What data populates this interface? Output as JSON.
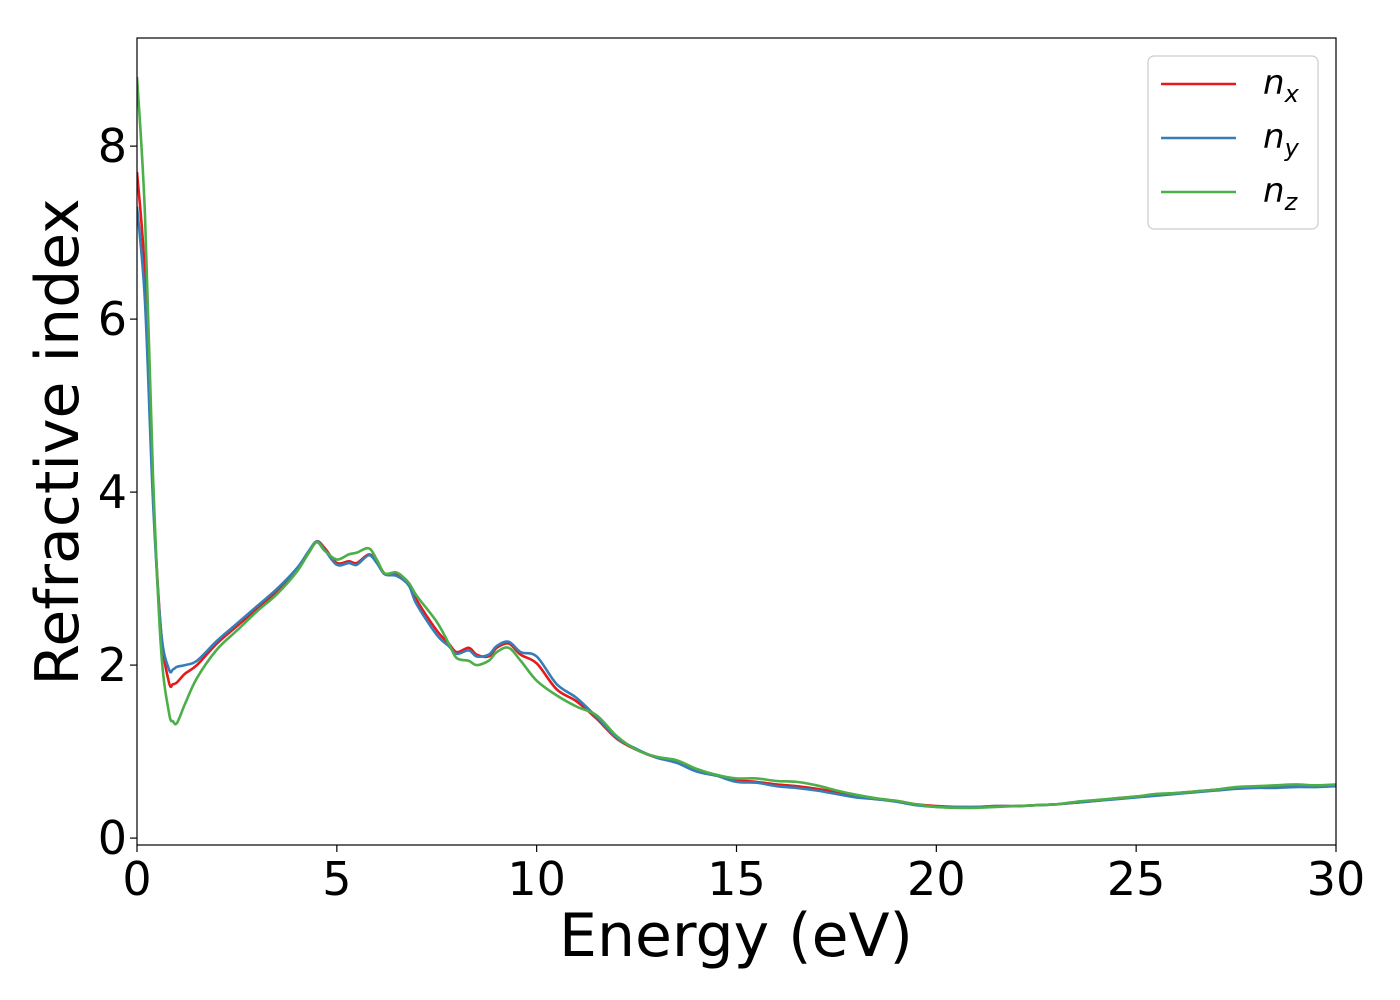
{
  "chart_data": {
    "type": "line",
    "xlabel": "Energy (eV)",
    "ylabel": "Refractive index",
    "xlim": [
      0,
      30
    ],
    "ylim": [
      -0.08,
      9.25
    ],
    "xticks": [
      0,
      5,
      10,
      15,
      20,
      25,
      30
    ],
    "xtick_labels": [
      "0",
      "5",
      "10",
      "15",
      "20",
      "25",
      "30"
    ],
    "yticks": [
      0,
      2,
      4,
      6,
      8
    ],
    "ytick_labels": [
      "0",
      "2",
      "4",
      "6",
      "8"
    ],
    "grid": false,
    "legend_position": "top-right",
    "series": [
      {
        "name": "n_x",
        "label_base": "n",
        "label_sub": "x",
        "color": "#e41a1c",
        "x": [
          0,
          0.2,
          0.4,
          0.6,
          0.8,
          0.9,
          1.0,
          1.2,
          1.5,
          2.0,
          2.5,
          3.0,
          3.5,
          4.0,
          4.3,
          4.5,
          4.7,
          5.0,
          5.3,
          5.5,
          5.8,
          6.0,
          6.2,
          6.5,
          6.8,
          7.0,
          7.5,
          7.8,
          8.0,
          8.3,
          8.5,
          8.8,
          9.0,
          9.3,
          9.6,
          10.0,
          10.5,
          11.0,
          11.5,
          12.0,
          12.5,
          13.0,
          13.5,
          14.0,
          14.5,
          15.0,
          15.5,
          16.0,
          16.5,
          17.0,
          17.5,
          18.0,
          18.5,
          19.0,
          19.5,
          20.0,
          20.5,
          21.0,
          21.5,
          22.0,
          22.5,
          23.0,
          23.5,
          24.0,
          24.5,
          25.0,
          25.5,
          26.0,
          26.5,
          27.0,
          27.5,
          28.0,
          28.5,
          29.0,
          29.5,
          30.0
        ],
        "y": [
          7.7,
          6.5,
          4.0,
          2.4,
          1.8,
          1.78,
          1.8,
          1.9,
          2.0,
          2.25,
          2.45,
          2.65,
          2.85,
          3.1,
          3.3,
          3.43,
          3.35,
          3.18,
          3.2,
          3.18,
          3.28,
          3.2,
          3.05,
          3.05,
          2.95,
          2.75,
          2.4,
          2.25,
          2.15,
          2.2,
          2.12,
          2.1,
          2.2,
          2.25,
          2.12,
          2.02,
          1.72,
          1.58,
          1.38,
          1.15,
          1.02,
          0.93,
          0.88,
          0.78,
          0.73,
          0.67,
          0.65,
          0.62,
          0.6,
          0.57,
          0.53,
          0.48,
          0.45,
          0.43,
          0.39,
          0.37,
          0.36,
          0.36,
          0.37,
          0.37,
          0.38,
          0.39,
          0.41,
          0.43,
          0.46,
          0.48,
          0.5,
          0.52,
          0.54,
          0.56,
          0.58,
          0.59,
          0.59,
          0.6,
          0.6,
          0.61
        ]
      },
      {
        "name": "n_y",
        "label_base": "n",
        "label_sub": "y",
        "color": "#377eb8",
        "x": [
          0,
          0.2,
          0.4,
          0.6,
          0.8,
          0.9,
          1.0,
          1.2,
          1.5,
          2.0,
          2.5,
          3.0,
          3.5,
          4.0,
          4.3,
          4.5,
          4.7,
          5.0,
          5.3,
          5.5,
          5.8,
          6.0,
          6.2,
          6.5,
          6.8,
          7.0,
          7.5,
          7.8,
          8.0,
          8.3,
          8.5,
          8.8,
          9.0,
          9.3,
          9.6,
          10.0,
          10.5,
          11.0,
          11.5,
          12.0,
          12.5,
          13.0,
          13.5,
          14.0,
          14.5,
          15.0,
          15.5,
          16.0,
          16.5,
          17.0,
          17.5,
          18.0,
          18.5,
          19.0,
          19.5,
          20.0,
          20.5,
          21.0,
          21.5,
          22.0,
          22.5,
          23.0,
          23.5,
          24.0,
          24.5,
          25.0,
          25.5,
          26.0,
          26.5,
          27.0,
          27.5,
          28.0,
          28.5,
          29.0,
          29.5,
          30.0
        ],
        "y": [
          7.3,
          6.2,
          3.9,
          2.4,
          1.95,
          1.95,
          1.98,
          2.0,
          2.05,
          2.28,
          2.48,
          2.68,
          2.88,
          3.12,
          3.32,
          3.43,
          3.33,
          3.16,
          3.18,
          3.16,
          3.27,
          3.18,
          3.05,
          3.03,
          2.92,
          2.7,
          2.35,
          2.22,
          2.13,
          2.17,
          2.1,
          2.12,
          2.22,
          2.27,
          2.15,
          2.1,
          1.78,
          1.62,
          1.4,
          1.16,
          1.03,
          0.93,
          0.87,
          0.77,
          0.72,
          0.65,
          0.64,
          0.6,
          0.58,
          0.55,
          0.51,
          0.47,
          0.45,
          0.42,
          0.38,
          0.36,
          0.36,
          0.36,
          0.37,
          0.37,
          0.38,
          0.39,
          0.41,
          0.43,
          0.45,
          0.47,
          0.49,
          0.51,
          0.53,
          0.55,
          0.57,
          0.58,
          0.58,
          0.59,
          0.59,
          0.6
        ]
      },
      {
        "name": "n_z",
        "label_base": "n",
        "label_sub": "z",
        "color": "#4daf4a",
        "x": [
          0,
          0.2,
          0.4,
          0.6,
          0.8,
          0.9,
          1.0,
          1.2,
          1.5,
          2.0,
          2.5,
          3.0,
          3.5,
          4.0,
          4.3,
          4.5,
          4.7,
          5.0,
          5.3,
          5.5,
          5.8,
          6.0,
          6.2,
          6.5,
          6.8,
          7.0,
          7.5,
          7.8,
          8.0,
          8.3,
          8.5,
          8.8,
          9.0,
          9.3,
          9.6,
          10.0,
          10.5,
          11.0,
          11.5,
          12.0,
          12.5,
          13.0,
          13.5,
          14.0,
          14.5,
          15.0,
          15.5,
          16.0,
          16.5,
          17.0,
          17.5,
          18.0,
          18.5,
          19.0,
          19.5,
          20.0,
          20.5,
          21.0,
          21.5,
          22.0,
          22.5,
          23.0,
          23.5,
          24.0,
          24.5,
          25.0,
          25.5,
          26.0,
          26.5,
          27.0,
          27.5,
          28.0,
          28.5,
          29.0,
          29.5,
          30.0
        ],
        "y": [
          8.8,
          7.2,
          4.2,
          2.2,
          1.45,
          1.35,
          1.33,
          1.55,
          1.85,
          2.18,
          2.4,
          2.62,
          2.82,
          3.08,
          3.3,
          3.42,
          3.32,
          3.22,
          3.28,
          3.3,
          3.35,
          3.22,
          3.06,
          3.07,
          2.95,
          2.8,
          2.5,
          2.25,
          2.08,
          2.05,
          2.0,
          2.05,
          2.15,
          2.2,
          2.05,
          1.82,
          1.65,
          1.52,
          1.42,
          1.18,
          1.02,
          0.94,
          0.9,
          0.8,
          0.73,
          0.69,
          0.69,
          0.66,
          0.65,
          0.61,
          0.55,
          0.5,
          0.46,
          0.43,
          0.39,
          0.36,
          0.35,
          0.35,
          0.36,
          0.37,
          0.38,
          0.39,
          0.42,
          0.44,
          0.46,
          0.48,
          0.51,
          0.52,
          0.54,
          0.56,
          0.59,
          0.6,
          0.61,
          0.62,
          0.61,
          0.62
        ]
      }
    ]
  }
}
